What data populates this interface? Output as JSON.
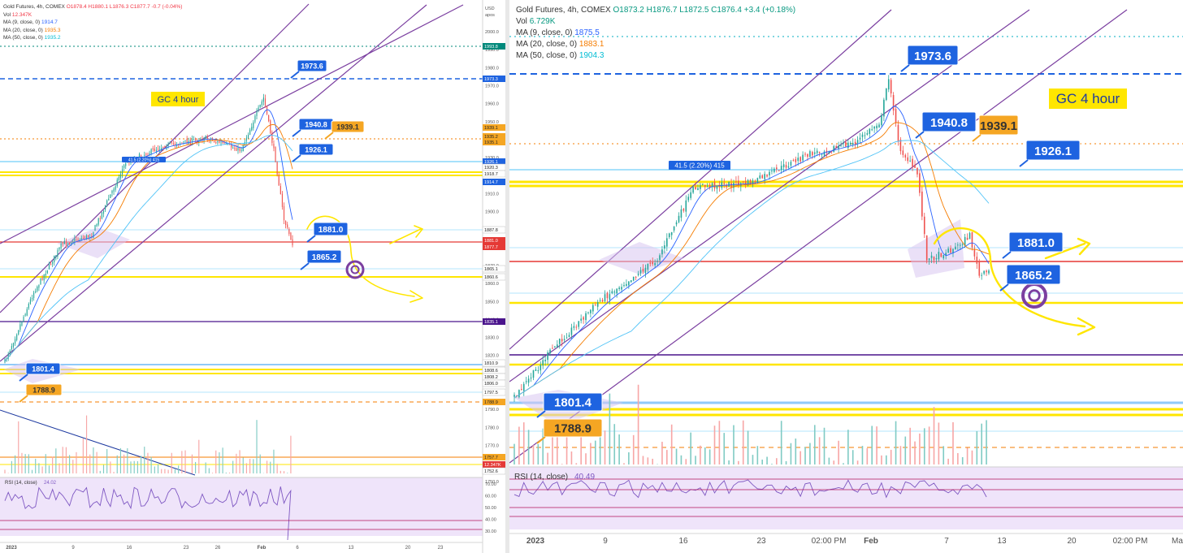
{
  "left": {
    "header": {
      "title": "Gold Futures, 4h, COMEX",
      "ohlc": "O1878.4 H1880.1 L1876.3 C1877.7 -0.7 (-0.04%)",
      "vol_label": "Vol",
      "vol_value": "12.347K",
      "ma9_label": "MA (9, close, 0)",
      "ma9_value": "1914.7",
      "ma20_label": "MA (20, close, 0)",
      "ma20_value": "1935.3",
      "ma50_label": "MA (50, close, 0)",
      "ma50_value": "1935.2"
    },
    "annotation_title": "GC 4 hour",
    "rsi_label": "RSI (14, close)",
    "rsi_value": "24.02",
    "currency_label": "USD",
    "currency_sub": "apos"
  },
  "right": {
    "header": {
      "title": "Gold Futures, 4h, COMEX",
      "ohlc": "O1873.2 H1876.7 L1872.5 C1876.4 +3.4 (+0.18%)",
      "vol_label": "Vol",
      "vol_value": "6.729K",
      "ma9_label": "MA (9, close, 0)",
      "ma9_value": "1875.5",
      "ma20_label": "MA (20, close, 0)",
      "ma20_value": "1883.1",
      "ma50_label": "MA (50, close, 0)",
      "ma50_value": "1904.3"
    },
    "annotation_title": "GC 4 hour",
    "rsi_label": "RSI (14, close)",
    "rsi_value": "40.49"
  },
  "colors": {
    "purple": "#7b3fa0",
    "blue_box": "#1e63e0",
    "orange_box": "#f5a623",
    "yellow": "#ffe600",
    "red": "#e53935",
    "cyan": "#4fc3f7",
    "rsi_bg": "#efe4fa"
  },
  "chart_data": [
    {
      "type": "line",
      "panel": "left",
      "title": "Gold Futures, 4h, COMEX",
      "annotation": "GC 4 hour",
      "x_ticks": [
        "2023",
        "9",
        "16",
        "23",
        "26",
        "Feb",
        "6",
        "13",
        "20",
        "23"
      ],
      "y_ticks": [
        2000,
        1990,
        1980,
        1970,
        1960,
        1950,
        1940,
        1930,
        1920,
        1910,
        1900,
        1890,
        1880,
        1870,
        1860,
        1850,
        1840,
        1830,
        1820,
        1810,
        1800,
        1790,
        1780,
        1770,
        1760,
        1750
      ],
      "ylim": [
        1745,
        2015
      ],
      "price_tags": [
        {
          "value": "1993.8",
          "color": "#00897b"
        },
        {
          "value": "1973.3",
          "color": "#1e63e0"
        },
        {
          "value": "1939.1",
          "color": "#f5a623"
        },
        {
          "value": "1935.2",
          "color": "#f5a623"
        },
        {
          "value": "1935.1",
          "color": "#f5a623"
        },
        {
          "value": "1926.1",
          "color": "#1e63e0"
        },
        {
          "value": "1920.3",
          "color": "#ffffff"
        },
        {
          "value": "1918.7",
          "color": "#ffffff"
        },
        {
          "value": "1914.7",
          "color": "#1e63e0"
        },
        {
          "value": "1887.8",
          "color": "#ffffff"
        },
        {
          "value": "1881.0",
          "color": "#e53935"
        },
        {
          "value": "1877.7",
          "color": "#e53935"
        },
        {
          "value": "1865.1",
          "color": "#ffffff"
        },
        {
          "value": "1860.6",
          "color": "#ffffff"
        },
        {
          "value": "1835.1",
          "color": "#4a148c"
        },
        {
          "value": "1810.9",
          "color": "#ffffff"
        },
        {
          "value": "1808.6",
          "color": "#ffffff"
        },
        {
          "value": "1808.2",
          "color": "#ffffff"
        },
        {
          "value": "1806.0",
          "color": "#ffffff"
        },
        {
          "value": "1797.5",
          "color": "#ffffff"
        },
        {
          "value": "1788.9",
          "color": "#f5a623"
        },
        {
          "value": "1757.7",
          "color": "#f5a623"
        },
        {
          "value": "12.347K",
          "color": "#e53935"
        },
        {
          "value": "1752.6",
          "color": "#ffffff"
        }
      ],
      "level_labels": [
        {
          "value": "1973.6",
          "style": "blue"
        },
        {
          "value": "1940.8",
          "style": "blue"
        },
        {
          "value": "1939.1",
          "style": "orange"
        },
        {
          "value": "1926.1",
          "style": "blue"
        },
        {
          "value": "1881.0",
          "style": "blue"
        },
        {
          "value": "1865.2",
          "style": "blue"
        },
        {
          "value": "1801.4",
          "style": "blue"
        },
        {
          "value": "1788.9",
          "style": "orange"
        }
      ],
      "measure_label": "41.5 (2.20%) 415",
      "rsi": {
        "label": "RSI (14, close)",
        "value": "24.02",
        "ticks": [
          70,
          60,
          50,
          40,
          30
        ]
      }
    },
    {
      "type": "line",
      "panel": "right",
      "title": "Gold Futures, 4h, COMEX",
      "annotation": "GC 4 hour",
      "x_ticks": [
        "2023",
        "9",
        "16",
        "23",
        "02:00 PM",
        "Feb",
        "7",
        "13",
        "20",
        "02:00 PM",
        "Ma"
      ],
      "level_labels": [
        {
          "value": "1973.6",
          "style": "blue"
        },
        {
          "value": "1940.8",
          "style": "blue"
        },
        {
          "value": "1939.1",
          "style": "orange"
        },
        {
          "value": "1926.1",
          "style": "blue"
        },
        {
          "value": "1881.0",
          "style": "blue"
        },
        {
          "value": "1865.2",
          "style": "blue"
        },
        {
          "value": "1801.4",
          "style": "blue"
        },
        {
          "value": "1788.9",
          "style": "orange"
        }
      ],
      "measure_label": "41.5 (2.20%) 415",
      "rsi": {
        "label": "RSI (14, close)",
        "value": "40.49"
      }
    }
  ]
}
